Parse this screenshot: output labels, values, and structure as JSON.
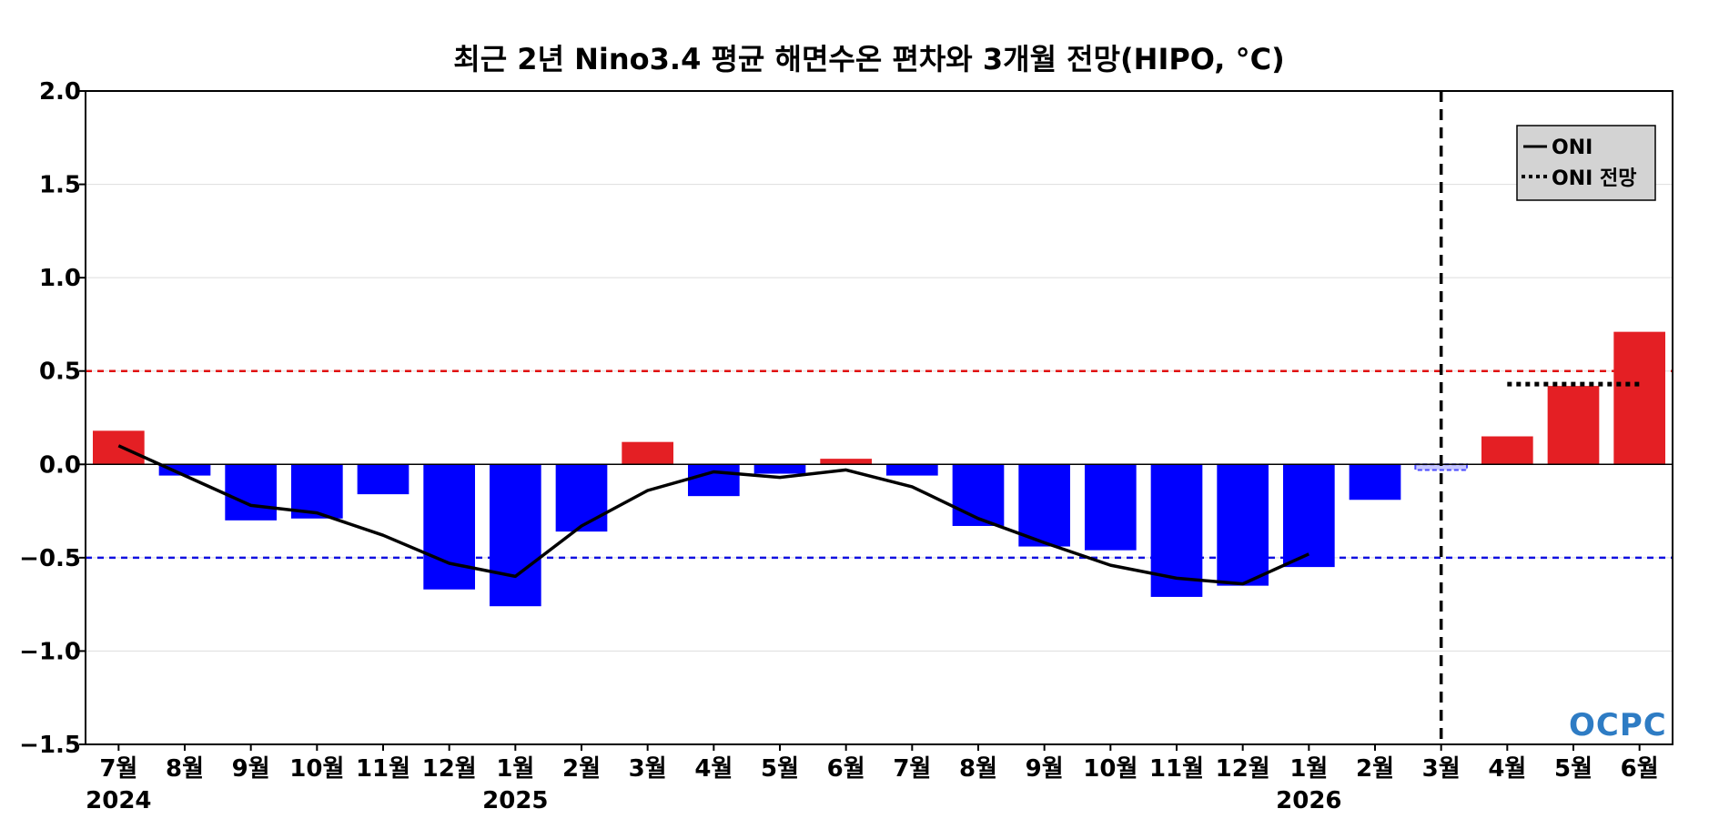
{
  "chart_data": {
    "type": "bar",
    "title": "최근 2년 Nino3.4 평균 해면수온 편차와 3개월 전망(HIPO, °C)",
    "ylim": [
      -1.5,
      2.0
    ],
    "yticks": [
      "2.0",
      "1.5",
      "1.0",
      "0.5",
      "0.0",
      "−0.5",
      "−1.0",
      "−1.5"
    ],
    "ytick_values": [
      2.0,
      1.5,
      1.0,
      0.5,
      0.0,
      -0.5,
      -1.0,
      -1.5
    ],
    "grid": true,
    "categories": [
      "7월",
      "8월",
      "9월",
      "10월",
      "11월",
      "12월",
      "1월",
      "2월",
      "3월",
      "4월",
      "5월",
      "6월",
      "7월",
      "8월",
      "9월",
      "10월",
      "11월",
      "12월",
      "1월",
      "2월",
      "3월",
      "4월",
      "5월",
      "6월"
    ],
    "year_labels": [
      {
        "index": 0,
        "label": "2024"
      },
      {
        "index": 6,
        "label": "2025"
      },
      {
        "index": 18,
        "label": "2026"
      }
    ],
    "values": [
      0.18,
      -0.06,
      -0.3,
      -0.29,
      -0.16,
      -0.67,
      -0.76,
      -0.36,
      0.12,
      -0.17,
      -0.05,
      0.03,
      -0.06,
      -0.33,
      -0.44,
      -0.46,
      -0.71,
      -0.65,
      -0.55,
      -0.19,
      -0.03,
      0.15,
      0.42,
      0.71
    ],
    "bar_styles": [
      "obs",
      "obs",
      "obs",
      "obs",
      "obs",
      "obs",
      "obs",
      "obs",
      "obs",
      "obs",
      "obs",
      "obs",
      "obs",
      "obs",
      "obs",
      "obs",
      "obs",
      "obs",
      "obs",
      "obs",
      "current",
      "forecast",
      "forecast",
      "forecast"
    ],
    "oni": {
      "name": "ONI",
      "start_index": 0,
      "values": [
        0.1,
        -0.06,
        -0.22,
        -0.26,
        -0.38,
        -0.53,
        -0.6,
        -0.33,
        -0.14,
        -0.04,
        -0.07,
        -0.03,
        -0.12,
        -0.29,
        -0.42,
        -0.54,
        -0.61,
        -0.64,
        -0.48
      ]
    },
    "oni_forecast": {
      "name": "ONI 전망",
      "start_index": 21,
      "end_index": 23,
      "value": 0.43
    },
    "thresholds": [
      {
        "value": 0.5,
        "color": "#e01010"
      },
      {
        "value": -0.5,
        "color": "#1010e0"
      }
    ],
    "divider_index": 20,
    "legend_position": "top-right",
    "colors": {
      "positive": "#e41f24",
      "negative": "#0000ff",
      "current_fill": "#c8c8ff",
      "current_stroke": "#4a4aff",
      "line": "#000000",
      "grid": "#dddddd",
      "legend_bg": "#d3d3d3"
    }
  },
  "watermark": {
    "text": "OCPC"
  }
}
